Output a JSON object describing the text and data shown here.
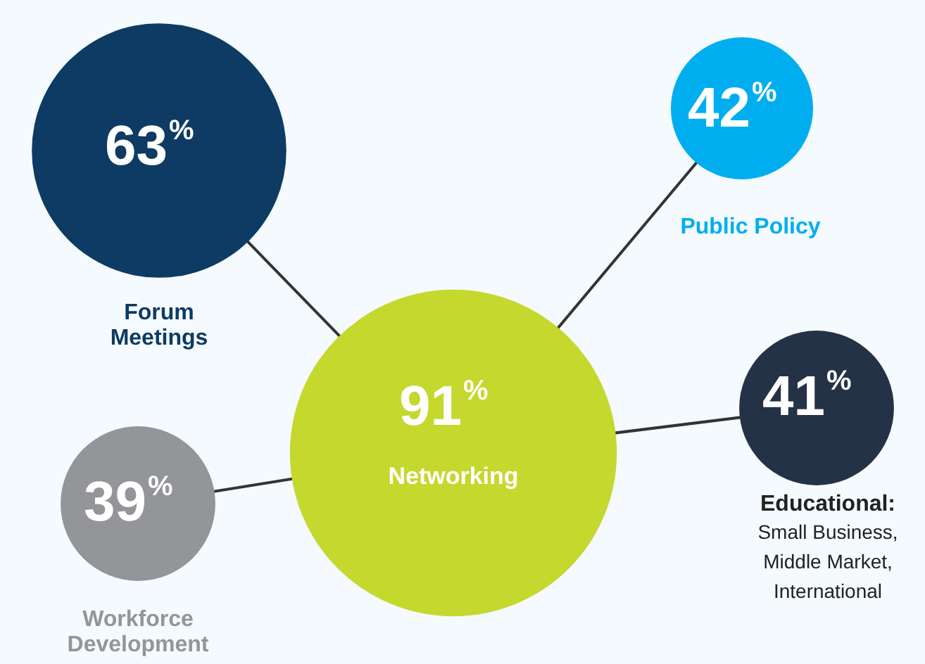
{
  "chart_data": {
    "type": "other",
    "categories": [
      "Forum\nMeetings",
      "Public Policy",
      "Networking",
      "Educational:\nSmall Business,\nMiddle Market,\nInternational",
      "Workforce\nDevelopment"
    ],
    "values": [
      63,
      42,
      91,
      41,
      39
    ],
    "value_labels": [
      "63%",
      "42%",
      "91%",
      "41%",
      "39%"
    ],
    "colors": [
      "#0d3b63",
      "#00aeef",
      "#c4d82e",
      "#243247",
      "#939598"
    ]
  }
}
